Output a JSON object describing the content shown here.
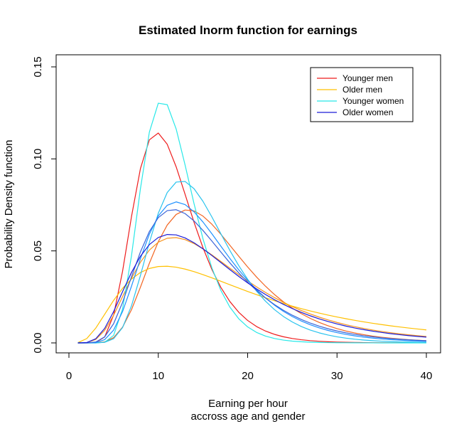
{
  "chart_data": {
    "type": "line",
    "title": "Estimated lnorm function for earnings",
    "xlabel_line1": "Earning per hour",
    "xlabel_line2": "accross age and gender",
    "ylabel": "Probability Density function",
    "xlim": [
      0,
      40
    ],
    "ylim": [
      0,
      0.15
    ],
    "xticks": [
      0,
      10,
      20,
      30,
      40
    ],
    "yticks": [
      0.0,
      0.05,
      0.1,
      0.15
    ],
    "ytick_labels": [
      "0.00",
      "0.05",
      "0.10",
      "0.15"
    ],
    "grid": false,
    "legend_position": "top-right",
    "legend": [
      {
        "name": "Younger men",
        "color": "#ee1c1c"
      },
      {
        "name": "Older men",
        "color": "#ffc000"
      },
      {
        "name": "Younger women",
        "color": "#28e8e8"
      },
      {
        "name": "Older women",
        "color": "#1c1cd8"
      }
    ],
    "series": [
      {
        "color": "#ee1c1c",
        "mu": 2.398,
        "sigma": 0.336
      },
      {
        "color": "#f26522",
        "mu": 2.736,
        "sigma": 0.385
      },
      {
        "color": "#f7931e",
        "mu": 2.73,
        "sigma": 0.52
      },
      {
        "color": "#ffc000",
        "mu": 2.86,
        "sigma": 0.7
      },
      {
        "color": "#28e8e8",
        "mu": 2.423,
        "sigma": 0.279
      },
      {
        "color": "#29c3ee",
        "mu": 2.646,
        "sigma": 0.34
      },
      {
        "color": "#1e90ff",
        "mu": 2.646,
        "sigma": 0.4
      },
      {
        "color": "#3a63d8",
        "mu": 2.641,
        "sigma": 0.43
      },
      {
        "color": "#1c1cd8",
        "mu": 2.7,
        "sigma": 0.52
      }
    ]
  }
}
